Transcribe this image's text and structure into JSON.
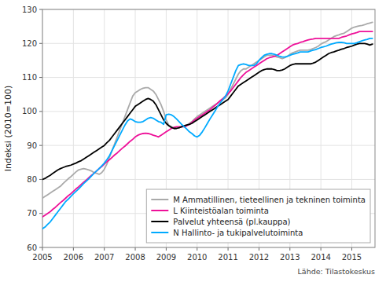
{
  "chart_data": {
    "type": "line",
    "ylabel": "Indeksi (2010=100)",
    "annotations": [
      "Lähde: Tilastokeskus"
    ],
    "xlim": [
      2005.0,
      2015.75
    ],
    "ylim": [
      60,
      130
    ],
    "xticks": [
      2005,
      2006,
      2007,
      2008,
      2009,
      2010,
      2011,
      2012,
      2013,
      2014,
      2015
    ],
    "yticks": [
      60,
      70,
      80,
      90,
      100,
      110,
      120,
      130
    ],
    "grid": true,
    "legend": "lower right",
    "x": [
      2005.0,
      2005.083,
      2005.167,
      2005.25,
      2005.333,
      2005.417,
      2005.5,
      2005.583,
      2005.667,
      2005.75,
      2005.833,
      2005.917,
      2006.0,
      2006.083,
      2006.167,
      2006.25,
      2006.333,
      2006.417,
      2006.5,
      2006.583,
      2006.667,
      2006.75,
      2006.833,
      2006.917,
      2007.0,
      2007.083,
      2007.167,
      2007.25,
      2007.333,
      2007.417,
      2007.5,
      2007.583,
      2007.667,
      2007.75,
      2007.833,
      2007.917,
      2008.0,
      2008.083,
      2008.167,
      2008.25,
      2008.333,
      2008.417,
      2008.5,
      2008.583,
      2008.667,
      2008.75,
      2008.833,
      2008.917,
      2009.0,
      2009.083,
      2009.167,
      2009.25,
      2009.333,
      2009.417,
      2009.5,
      2009.583,
      2009.667,
      2009.75,
      2009.833,
      2009.917,
      2010.0,
      2010.083,
      2010.167,
      2010.25,
      2010.333,
      2010.417,
      2010.5,
      2010.583,
      2010.667,
      2010.75,
      2010.833,
      2010.917,
      2011.0,
      2011.083,
      2011.167,
      2011.25,
      2011.333,
      2011.417,
      2011.5,
      2011.583,
      2011.667,
      2011.75,
      2011.833,
      2011.917,
      2012.0,
      2012.083,
      2012.167,
      2012.25,
      2012.333,
      2012.417,
      2012.5,
      2012.583,
      2012.667,
      2012.75,
      2012.833,
      2012.917,
      2013.0,
      2013.083,
      2013.167,
      2013.25,
      2013.333,
      2013.417,
      2013.5,
      2013.583,
      2013.667,
      2013.75,
      2013.833,
      2013.917,
      2014.0,
      2014.083,
      2014.167,
      2014.25,
      2014.333,
      2014.417,
      2014.5,
      2014.583,
      2014.667,
      2014.75,
      2014.833,
      2014.917,
      2015.0,
      2015.083,
      2015.167,
      2015.25,
      2015.333,
      2015.417,
      2015.5,
      2015.583,
      2015.667
    ],
    "series": [
      {
        "name": "M Ammatillinen, tieteellinen ja tekninen toiminta",
        "color": "#aaaaaa",
        "values": [
          74.5,
          75.0,
          75.5,
          76.0,
          76.5,
          77.0,
          77.5,
          78.0,
          78.8,
          79.5,
          80.2,
          80.8,
          81.5,
          82.2,
          82.8,
          83.0,
          83.2,
          83.0,
          82.8,
          82.5,
          82.0,
          81.8,
          81.5,
          82.0,
          83.0,
          84.5,
          86.5,
          88.5,
          90.5,
          92.5,
          94.5,
          96.5,
          98.5,
          100.5,
          102.5,
          104.5,
          105.5,
          106.0,
          106.5,
          106.8,
          107.0,
          107.0,
          106.5,
          106.0,
          105.0,
          103.5,
          102.0,
          100.0,
          97.5,
          96.0,
          95.5,
          95.0,
          95.0,
          95.2,
          95.5,
          95.8,
          96.0,
          96.5,
          97.0,
          97.8,
          98.5,
          99.0,
          99.5,
          100.0,
          100.5,
          101.0,
          101.5,
          102.0,
          102.5,
          103.0,
          103.5,
          104.0,
          105.0,
          106.5,
          108.0,
          109.5,
          111.0,
          112.0,
          112.5,
          112.5,
          113.0,
          113.5,
          114.0,
          114.5,
          115.0,
          115.5,
          116.0,
          116.5,
          116.5,
          116.5,
          116.3,
          116.0,
          115.8,
          115.5,
          115.8,
          116.2,
          116.8,
          117.2,
          117.5,
          117.8,
          118.0,
          118.0,
          118.0,
          118.0,
          118.2,
          118.5,
          118.8,
          119.2,
          119.8,
          120.2,
          120.5,
          121.0,
          121.5,
          122.0,
          122.3,
          122.5,
          122.8,
          123.0,
          123.5,
          124.0,
          124.5,
          124.8,
          125.0,
          125.2,
          125.3,
          125.5,
          125.8,
          126.0,
          126.2
        ]
      },
      {
        "name": "L Kiinteistöalan toiminta",
        "color": "#ee1199",
        "values": [
          69.0,
          69.5,
          70.0,
          70.5,
          71.2,
          71.8,
          72.5,
          73.2,
          73.8,
          74.5,
          75.2,
          75.8,
          76.5,
          77.2,
          77.8,
          78.5,
          79.2,
          79.8,
          80.5,
          81.2,
          81.8,
          82.5,
          83.2,
          83.8,
          84.5,
          85.2,
          85.8,
          86.5,
          87.2,
          87.8,
          88.5,
          89.2,
          89.8,
          90.5,
          91.2,
          91.8,
          92.5,
          93.0,
          93.3,
          93.5,
          93.6,
          93.5,
          93.3,
          93.0,
          92.8,
          92.5,
          93.0,
          93.5,
          94.0,
          94.5,
          95.0,
          95.3,
          95.5,
          95.5,
          95.5,
          95.5,
          95.8,
          96.2,
          96.8,
          97.5,
          98.0,
          98.5,
          99.0,
          99.5,
          100.0,
          100.5,
          101.2,
          101.8,
          102.5,
          103.2,
          103.8,
          104.5,
          105.2,
          106.0,
          107.0,
          108.0,
          109.0,
          110.0,
          110.8,
          111.5,
          112.0,
          112.5,
          113.0,
          113.5,
          114.0,
          114.5,
          115.0,
          115.5,
          115.8,
          116.0,
          116.2,
          116.5,
          117.0,
          117.5,
          118.0,
          118.5,
          119.0,
          119.5,
          119.8,
          120.0,
          120.3,
          120.5,
          120.8,
          121.0,
          121.2,
          121.3,
          121.5,
          121.5,
          121.5,
          121.5,
          121.5,
          121.5,
          121.5,
          121.5,
          121.5,
          121.5,
          121.8,
          122.0,
          122.2,
          122.5,
          122.8,
          123.0,
          123.2,
          123.5,
          123.5,
          123.5,
          123.5,
          123.5,
          123.5
        ]
      },
      {
        "name": "Palvelut yhteensä  (pl.kauppa)",
        "color": "#000000",
        "values": [
          80.0,
          80.3,
          80.8,
          81.2,
          81.8,
          82.3,
          82.8,
          83.2,
          83.5,
          83.8,
          84.0,
          84.2,
          84.5,
          84.8,
          85.2,
          85.5,
          86.0,
          86.5,
          87.0,
          87.5,
          88.0,
          88.5,
          89.0,
          89.5,
          90.0,
          90.8,
          91.5,
          92.5,
          93.5,
          94.5,
          95.5,
          96.5,
          97.5,
          98.5,
          99.5,
          100.5,
          101.5,
          102.0,
          102.5,
          103.0,
          103.5,
          103.8,
          103.5,
          103.0,
          102.0,
          100.5,
          99.0,
          97.5,
          96.5,
          95.8,
          95.3,
          95.0,
          95.0,
          95.2,
          95.5,
          95.8,
          96.0,
          96.2,
          96.5,
          97.0,
          97.5,
          98.0,
          98.5,
          99.0,
          99.5,
          100.0,
          100.5,
          101.0,
          101.5,
          102.0,
          102.5,
          103.0,
          103.5,
          104.5,
          105.5,
          106.5,
          107.5,
          108.0,
          108.5,
          109.0,
          109.5,
          110.0,
          110.5,
          111.0,
          111.5,
          112.0,
          112.3,
          112.5,
          112.5,
          112.5,
          112.3,
          112.0,
          112.0,
          112.2,
          112.5,
          113.0,
          113.5,
          113.8,
          114.0,
          114.0,
          114.0,
          114.0,
          114.0,
          114.0,
          114.0,
          114.2,
          114.5,
          115.0,
          115.5,
          116.0,
          116.5,
          117.0,
          117.3,
          117.5,
          117.8,
          118.0,
          118.3,
          118.5,
          118.8,
          119.0,
          119.2,
          119.5,
          119.8,
          120.0,
          120.0,
          120.0,
          119.8,
          119.5,
          119.8
        ]
      },
      {
        "name": "N Hallinto- ja tukipalvelutoiminta",
        "color": "#00aaff",
        "values": [
          65.5,
          66.0,
          66.8,
          67.5,
          68.5,
          69.5,
          70.5,
          71.5,
          72.5,
          73.5,
          74.2,
          75.0,
          75.8,
          76.5,
          77.2,
          78.0,
          78.8,
          79.5,
          80.2,
          81.0,
          81.8,
          82.5,
          83.2,
          84.0,
          84.8,
          85.8,
          87.0,
          88.5,
          90.0,
          91.5,
          93.0,
          94.5,
          96.0,
          97.2,
          97.8,
          97.5,
          97.0,
          96.8,
          96.8,
          97.0,
          97.5,
          98.0,
          98.2,
          98.0,
          97.5,
          97.0,
          96.8,
          96.2,
          99.0,
          99.2,
          99.0,
          98.5,
          97.8,
          97.0,
          96.2,
          95.5,
          94.8,
          94.0,
          93.5,
          92.8,
          92.5,
          93.0,
          94.0,
          95.2,
          96.5,
          97.8,
          99.0,
          100.2,
          101.5,
          102.5,
          103.5,
          104.5,
          106.0,
          108.0,
          110.0,
          112.0,
          113.5,
          113.8,
          114.0,
          113.8,
          113.5,
          113.5,
          113.5,
          114.0,
          115.0,
          115.8,
          116.5,
          116.8,
          117.0,
          117.0,
          116.8,
          116.5,
          116.2,
          116.0,
          116.0,
          116.2,
          116.5,
          116.8,
          117.0,
          117.2,
          117.5,
          117.5,
          117.5,
          117.5,
          117.8,
          118.0,
          118.2,
          118.5,
          118.8,
          119.0,
          119.2,
          119.5,
          119.8,
          120.0,
          120.2,
          120.3,
          120.3,
          120.2,
          120.0,
          120.0,
          120.0,
          120.0,
          120.2,
          120.5,
          120.8,
          121.0,
          121.2,
          121.5,
          121.5
        ]
      }
    ]
  }
}
